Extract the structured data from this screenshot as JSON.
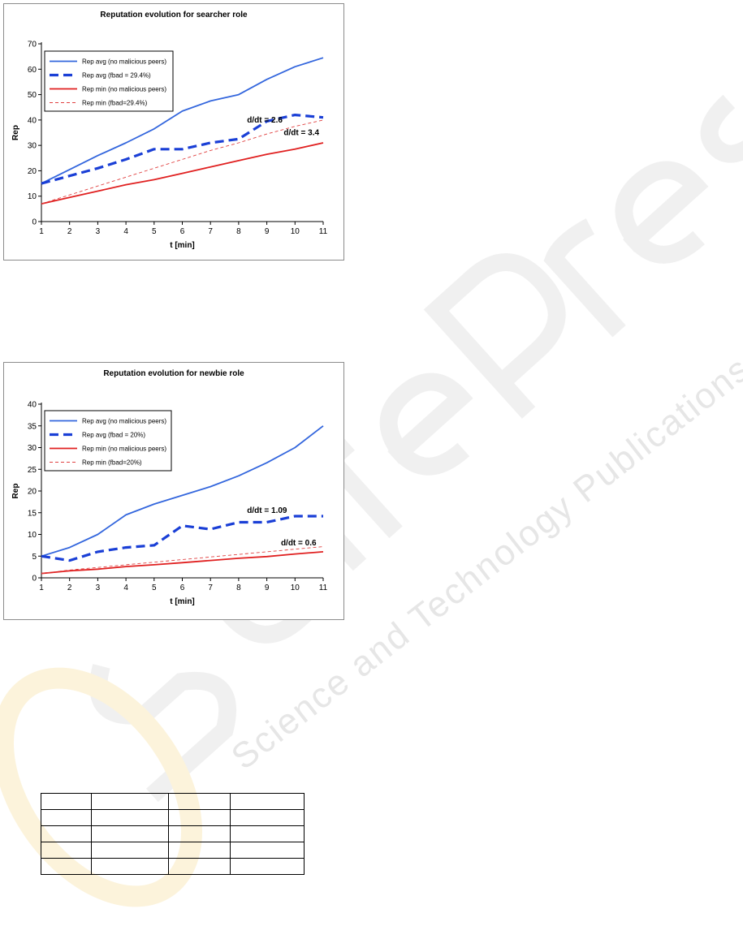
{
  "chart_data": [
    {
      "type": "line",
      "title": "Reputation evolution for searcher role",
      "xlabel": "t [min]",
      "ylabel": "Rep",
      "x": [
        1,
        2,
        3,
        4,
        5,
        6,
        7,
        8,
        9,
        10,
        11
      ],
      "xlim": [
        1,
        11
      ],
      "ylim": [
        0,
        70
      ],
      "yticks": [
        0,
        10,
        20,
        30,
        40,
        50,
        60,
        70
      ],
      "grid": false,
      "legend_position": "top-left",
      "series": [
        {
          "name": "Rep avg (no malicious peers)",
          "color": "#3366dd",
          "style": "solid",
          "values": [
            15,
            20.5,
            26,
            31,
            36.5,
            43.5,
            47.5,
            50,
            56,
            61,
            64.5
          ]
        },
        {
          "name": "Rep avg (fbad = 29.4%)",
          "color": "#1a3fd6",
          "style": "dashed-thick",
          "values": [
            15,
            18,
            21,
            24.5,
            28.5,
            28.5,
            31,
            32.5,
            39.5,
            42,
            41
          ]
        },
        {
          "name": "Rep min (no malicious peers)",
          "color": "#e02020",
          "style": "solid",
          "values": [
            7,
            9.5,
            12,
            14.5,
            16.5,
            19,
            21.5,
            24,
            26.5,
            28.5,
            31
          ]
        },
        {
          "name": "Rep min (fbad=29.4%)",
          "color": "#e04040",
          "style": "dashed-thin",
          "values": [
            7,
            10.5,
            14,
            17.5,
            21,
            24.5,
            28,
            31,
            34.5,
            37.5,
            40
          ]
        }
      ],
      "annotations": [
        {
          "text": "d/dt = 2.6",
          "x": 8.3,
          "y": 39
        },
        {
          "text": "d/dt = 3.4",
          "x": 9.6,
          "y": 34
        }
      ]
    },
    {
      "type": "line",
      "title": "Reputation evolution for newbie role",
      "xlabel": "t [min]",
      "ylabel": "Rep",
      "x": [
        1,
        2,
        3,
        4,
        5,
        6,
        7,
        8,
        9,
        10,
        11
      ],
      "xlim": [
        1,
        11
      ],
      "ylim": [
        0,
        40
      ],
      "yticks": [
        0,
        5,
        10,
        15,
        20,
        25,
        30,
        35,
        40
      ],
      "grid": false,
      "legend_position": "top-left",
      "series": [
        {
          "name": "Rep avg (no malicious peers)",
          "color": "#3366dd",
          "style": "solid",
          "values": [
            5,
            7,
            10,
            14.5,
            17,
            19,
            21,
            23.5,
            26.5,
            30,
            35
          ]
        },
        {
          "name": "Rep avg (fbad = 20%)",
          "color": "#1a3fd6",
          "style": "dashed-thick",
          "values": [
            5,
            4,
            6,
            7,
            7.5,
            12,
            11.2,
            12.8,
            12.8,
            14.2,
            14.2
          ]
        },
        {
          "name": "Rep min (no malicious peers)",
          "color": "#e02020",
          "style": "solid",
          "values": [
            1,
            1.6,
            2,
            2.6,
            3,
            3.5,
            4,
            4.5,
            4.9,
            5.5,
            6
          ]
        },
        {
          "name": "Rep min (fbad=20%)",
          "color": "#e04040",
          "style": "dashed-thin",
          "values": [
            1,
            1.8,
            2.4,
            3,
            3.6,
            4.2,
            4.8,
            5.4,
            6,
            6.6,
            7.2
          ]
        }
      ],
      "annotations": [
        {
          "text": "d/dt = 1.09",
          "x": 8.3,
          "y": 15
        },
        {
          "text": "d/dt = 0.6",
          "x": 9.5,
          "y": 7.5
        }
      ]
    }
  ],
  "table": {
    "rows": [
      [
        "",
        "",
        "",
        ""
      ],
      [
        "",
        "",
        "",
        ""
      ],
      [
        "",
        "",
        "",
        ""
      ],
      [
        "",
        "",
        "",
        ""
      ],
      [
        "",
        "",
        "",
        ""
      ]
    ]
  },
  "watermark": {
    "primary": "SciTePress",
    "secondary": "Science and Technology Publications"
  }
}
